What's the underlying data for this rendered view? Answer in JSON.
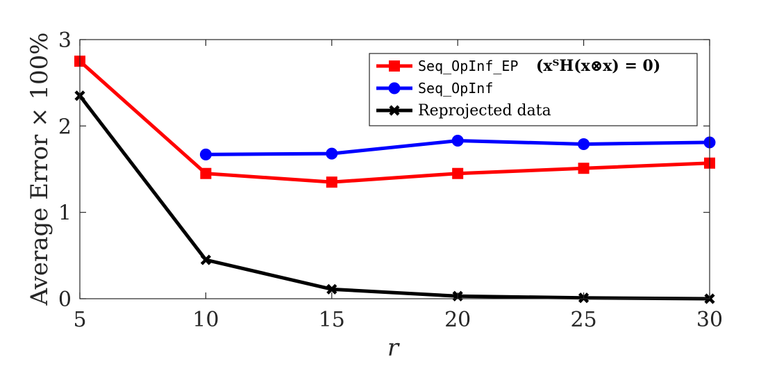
{
  "chart_data": {
    "type": "line",
    "xlabel": "r",
    "ylabel": "Average Error × 100%",
    "xlim": [
      5,
      30
    ],
    "ylim": [
      0,
      3
    ],
    "xticks": [
      5,
      10,
      15,
      20,
      25,
      30
    ],
    "yticks": [
      0,
      1,
      2,
      3
    ],
    "grid": false,
    "legend_position": "top-right",
    "series": [
      {
        "name": "Seq_OpInf_EP",
        "legend_suffix": "(xᵀH(x⊗x) = 0)",
        "color": "#ff0000",
        "marker": "square",
        "x": [
          5,
          10,
          15,
          20,
          25,
          30
        ],
        "y": [
          2.75,
          1.45,
          1.35,
          1.45,
          1.51,
          1.57
        ]
      },
      {
        "name": "Seq_OpInf",
        "color": "#0000ff",
        "marker": "circle",
        "x": [
          10,
          15,
          20,
          25,
          30
        ],
        "y": [
          1.67,
          1.68,
          1.83,
          1.79,
          1.81
        ]
      },
      {
        "name": "Reprojected data",
        "color": "#000000",
        "marker": "x",
        "x": [
          5,
          10,
          15,
          20,
          25,
          30
        ],
        "y": [
          2.35,
          0.45,
          0.11,
          0.03,
          0.01,
          0.0
        ]
      }
    ]
  }
}
